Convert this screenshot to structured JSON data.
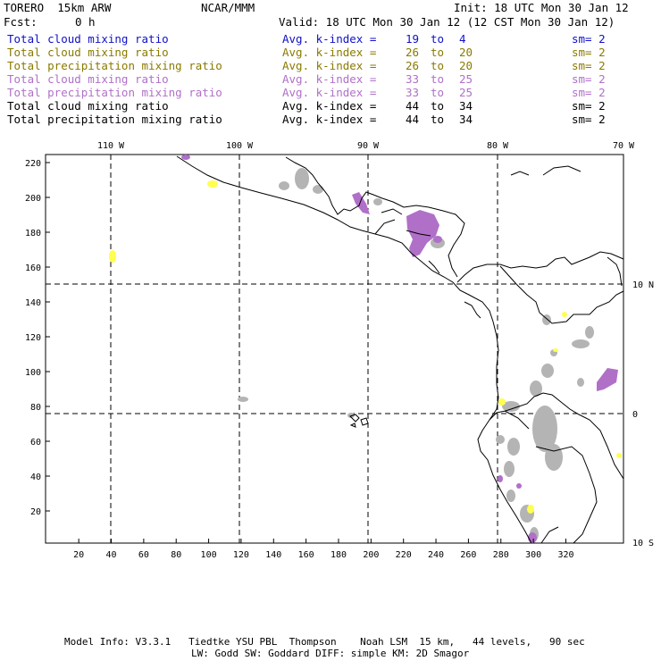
{
  "header": {
    "model": "TORERO  15km ARW",
    "org": "NCAR/MMM",
    "init": "Init: 18 UTC Mon 30 Jan 12",
    "fcst_label": "Fcst:",
    "fcst_value": "0 h",
    "valid": "Valid: 18 UTC Mon 30 Jan 12 (12 CST Mon 30 Jan 12)"
  },
  "legend": [
    {
      "field": "Total cloud mixing ratio",
      "kindex": "Avg. k-index =",
      "a": "19",
      "to": "to",
      "b": "4",
      "sm": "sm= 2",
      "color": "#1010c8"
    },
    {
      "field": "Total cloud mixing ratio",
      "kindex": "Avg. k-index =",
      "a": "26",
      "to": "to",
      "b": "20",
      "sm": "sm= 2",
      "color": "#8a7a00"
    },
    {
      "field": "Total precipitation mixing ratio",
      "kindex": "Avg. k-index =",
      "a": "26",
      "to": "to",
      "b": "20",
      "sm": "sm= 2",
      "color": "#8a7a00"
    },
    {
      "field": "Total cloud mixing ratio",
      "kindex": "Avg. k-index =",
      "a": "33",
      "to": "to",
      "b": "25",
      "sm": "sm= 2",
      "color": "#b070c8"
    },
    {
      "field": "Total precipitation mixing ratio",
      "kindex": "Avg. k-index =",
      "a": "33",
      "to": "to",
      "b": "25",
      "sm": "sm= 2",
      "color": "#b070c8"
    },
    {
      "field": "Total cloud mixing ratio",
      "kindex": "Avg. k-index =",
      "a": "44",
      "to": "to",
      "b": "34",
      "sm": "sm= 2",
      "color": "#000000"
    },
    {
      "field": "Total precipitation mixing ratio",
      "kindex": "Avg. k-index =",
      "a": "44",
      "to": "to",
      "b": "34",
      "sm": "sm= 2",
      "color": "#000000"
    }
  ],
  "map": {
    "lon_labels": [
      "110 W",
      "100 W",
      "90 W",
      "80 W",
      "70 W"
    ],
    "lat_labels": [
      "10 N",
      "0",
      "10 S"
    ],
    "x_ticks": [
      "20",
      "40",
      "60",
      "80",
      "100",
      "120",
      "140",
      "160",
      "180",
      "200",
      "220",
      "240",
      "260",
      "280",
      "300",
      "320"
    ],
    "y_ticks": [
      "220",
      "200",
      "180",
      "160",
      "140",
      "120",
      "100",
      "80",
      "60",
      "40",
      "20"
    ],
    "colors": {
      "gray": "#b4b4b4",
      "purple": "#b070c8",
      "yellow": "#ffff50",
      "line": "#000000"
    }
  },
  "footer": {
    "line1": "Model Info: V3.3.1   Tiedtke YSU PBL  Thompson    Noah LSM  15 km,   44 levels,   90 sec",
    "line2": "LW: Godd SW: Goddard DIFF: simple KM: 2D Smagor"
  }
}
